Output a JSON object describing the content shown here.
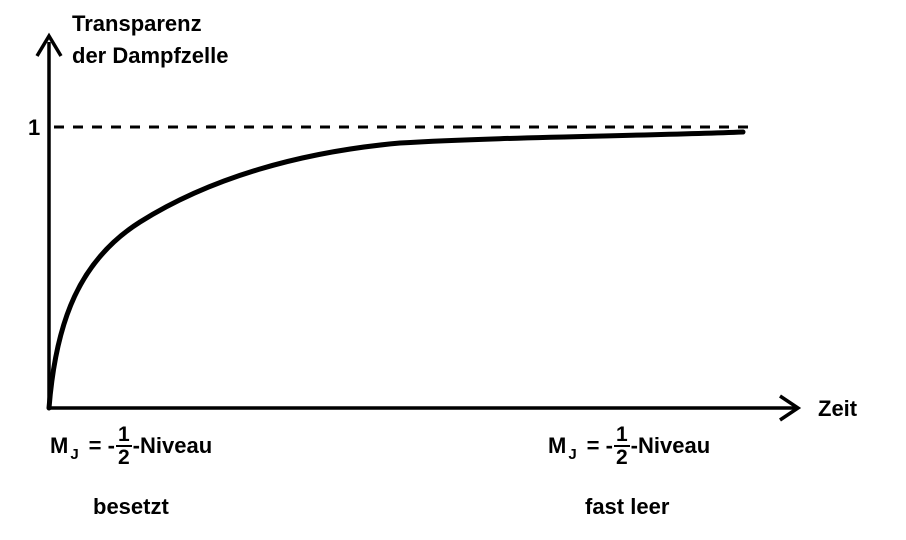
{
  "y_axis_label": [
    "Transparenz",
    "der Dampfzelle"
  ],
  "y_tick_label": "1",
  "x_axis_label": "Zeit",
  "mj_annotations": [
    {
      "prefix": "M",
      "subscript": "J",
      "equals": "= -",
      "numerator": "1",
      "denominator": "2",
      "suffix": "-Niveau",
      "state": "besetzt"
    },
    {
      "prefix": "M",
      "subscript": "J",
      "equals": "= -",
      "numerator": "1",
      "denominator": "2",
      "suffix": "-Niveau",
      "state": "fast leer"
    }
  ],
  "colors": {
    "ink": "#000000",
    "background": "#ffffff"
  }
}
